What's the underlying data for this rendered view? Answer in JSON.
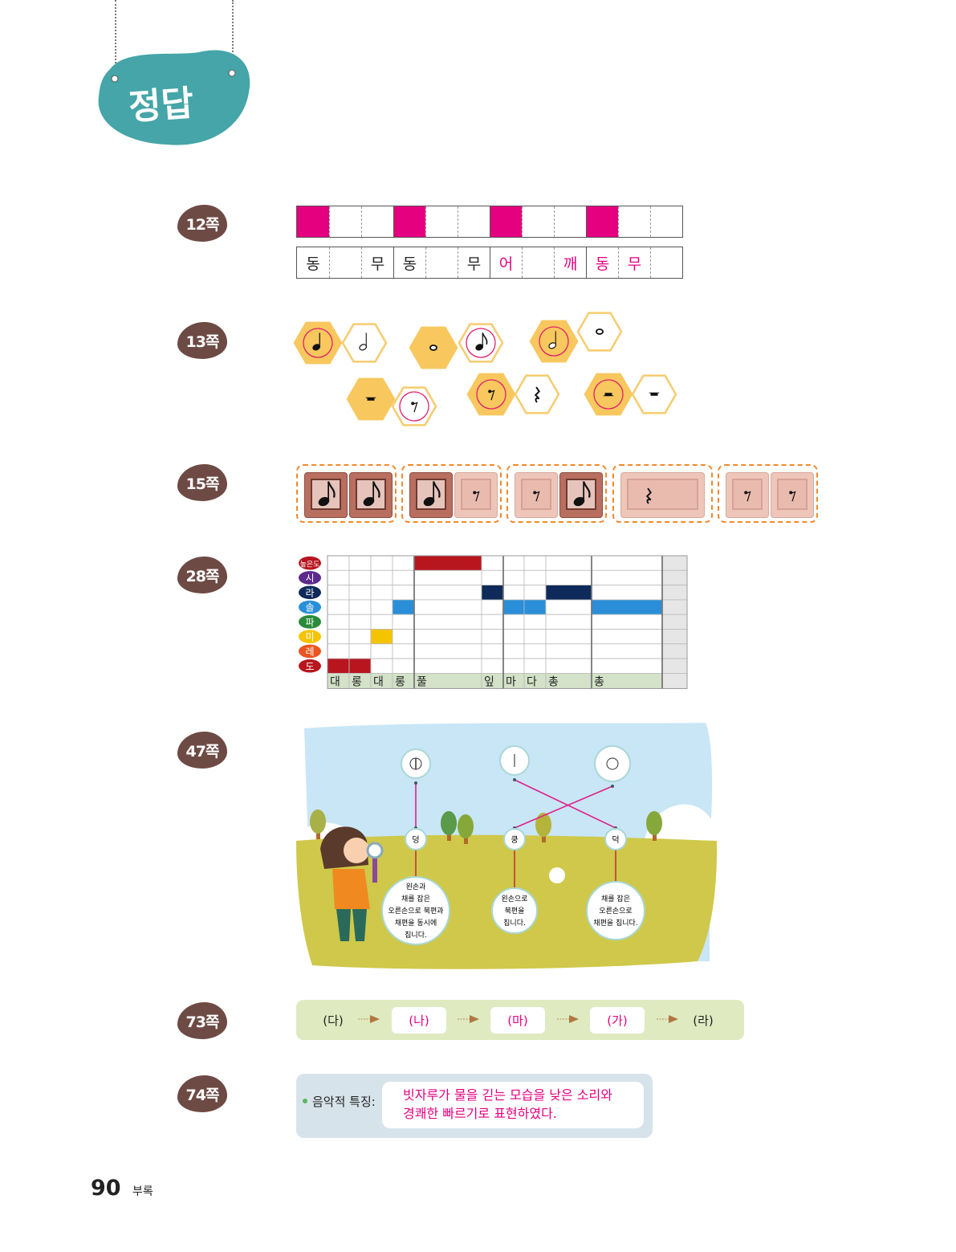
{
  "header": {
    "title": "정답",
    "color": "#45a5a8"
  },
  "sections": [
    {
      "label": "12쪽"
    },
    {
      "label": "13쪽"
    },
    {
      "label": "15쪽"
    },
    {
      "label": "28쪽"
    },
    {
      "label": "47쪽"
    },
    {
      "label": "73쪽"
    },
    {
      "label": "74쪽"
    }
  ],
  "p12": {
    "rhythm_filled": [
      true,
      false,
      false,
      true,
      false,
      false,
      true,
      false,
      false,
      true,
      false,
      false
    ],
    "syllables": [
      "동",
      "",
      "무",
      "동",
      "",
      "무",
      "어",
      "",
      "깨",
      "동",
      "무",
      ""
    ],
    "syllable_colors": [
      "#222",
      "#222",
      "#222",
      "#222",
      "#222",
      "#222",
      "#e5007f",
      "#e5007f",
      "#e5007f",
      "#e5007f",
      "#e5007f",
      "#e5007f"
    ],
    "accent": "#e5007f"
  },
  "p13": {
    "pairs": [
      {
        "left": "quarter-note",
        "right": "half-note",
        "circled": "left"
      },
      {
        "left": "whole-note",
        "right": "eighth-note",
        "circled": "right"
      },
      {
        "left": "half-note",
        "right": "whole-note",
        "circled": "left"
      },
      {
        "left": "whole-rest",
        "right": "eighth-rest",
        "circled": "right"
      },
      {
        "left": "eighth-rest",
        "right": "quarter-rest",
        "circled": "left"
      },
      {
        "left": "half-rest",
        "right": "whole-rest",
        "circled": "left"
      }
    ]
  },
  "p15": {
    "groups": [
      [
        "eighth-note",
        "eighth-note"
      ],
      [
        "eighth-note",
        "eighth-rest"
      ],
      [
        "eighth-rest",
        "eighth-note"
      ],
      [
        "quarter-rest"
      ],
      [
        "eighth-rest",
        "eighth-rest"
      ]
    ]
  },
  "p28": {
    "pitches": [
      {
        "label": "높은도",
        "color": "#b8161f"
      },
      {
        "label": "시",
        "color": "#5b2a8c"
      },
      {
        "label": "라",
        "color": "#0e2a5a"
      },
      {
        "label": "솔",
        "color": "#2a8fd8"
      },
      {
        "label": "파",
        "color": "#2a8a3a"
      },
      {
        "label": "미",
        "color": "#f5c400"
      },
      {
        "label": "레",
        "color": "#ea5520"
      },
      {
        "label": "도",
        "color": "#b8161f"
      }
    ],
    "lyrics": [
      "대",
      "롱",
      "대",
      "롱",
      "풀",
      "잎",
      "마",
      "다",
      "총",
      "총",
      ""
    ],
    "notes": [
      "도",
      "도",
      "미",
      "솔",
      "높은도",
      "라",
      "솔",
      "솔",
      "라",
      "솔",
      null
    ]
  },
  "p47": {
    "symbols": [
      "circle-with-line",
      "vertical-line",
      "circle"
    ],
    "sounds": [
      "덩",
      "쿵",
      "덕"
    ],
    "descriptions": [
      [
        "왼손과",
        "채를 잡은",
        "오른손으로 북편과",
        "채편을 동시에",
        "칩니다."
      ],
      [
        "왼손으로",
        "북편을",
        "칩니다."
      ],
      [
        "채를 잡은",
        "오른손으로",
        "채편을 칩니다."
      ]
    ],
    "line_color": "#e0208a"
  },
  "p73": {
    "sequence": [
      "(다)",
      "(나)",
      "(마)",
      "(가)",
      "(라)"
    ]
  },
  "p74": {
    "label": "음악적 특징:",
    "answer_line1": "빗자루가 물을 긷는 모습을 낮은 소리와",
    "answer_line2": "경쾌한 빠르기로 표현하였다."
  },
  "footer": {
    "page_number": "90",
    "section": "부록"
  }
}
